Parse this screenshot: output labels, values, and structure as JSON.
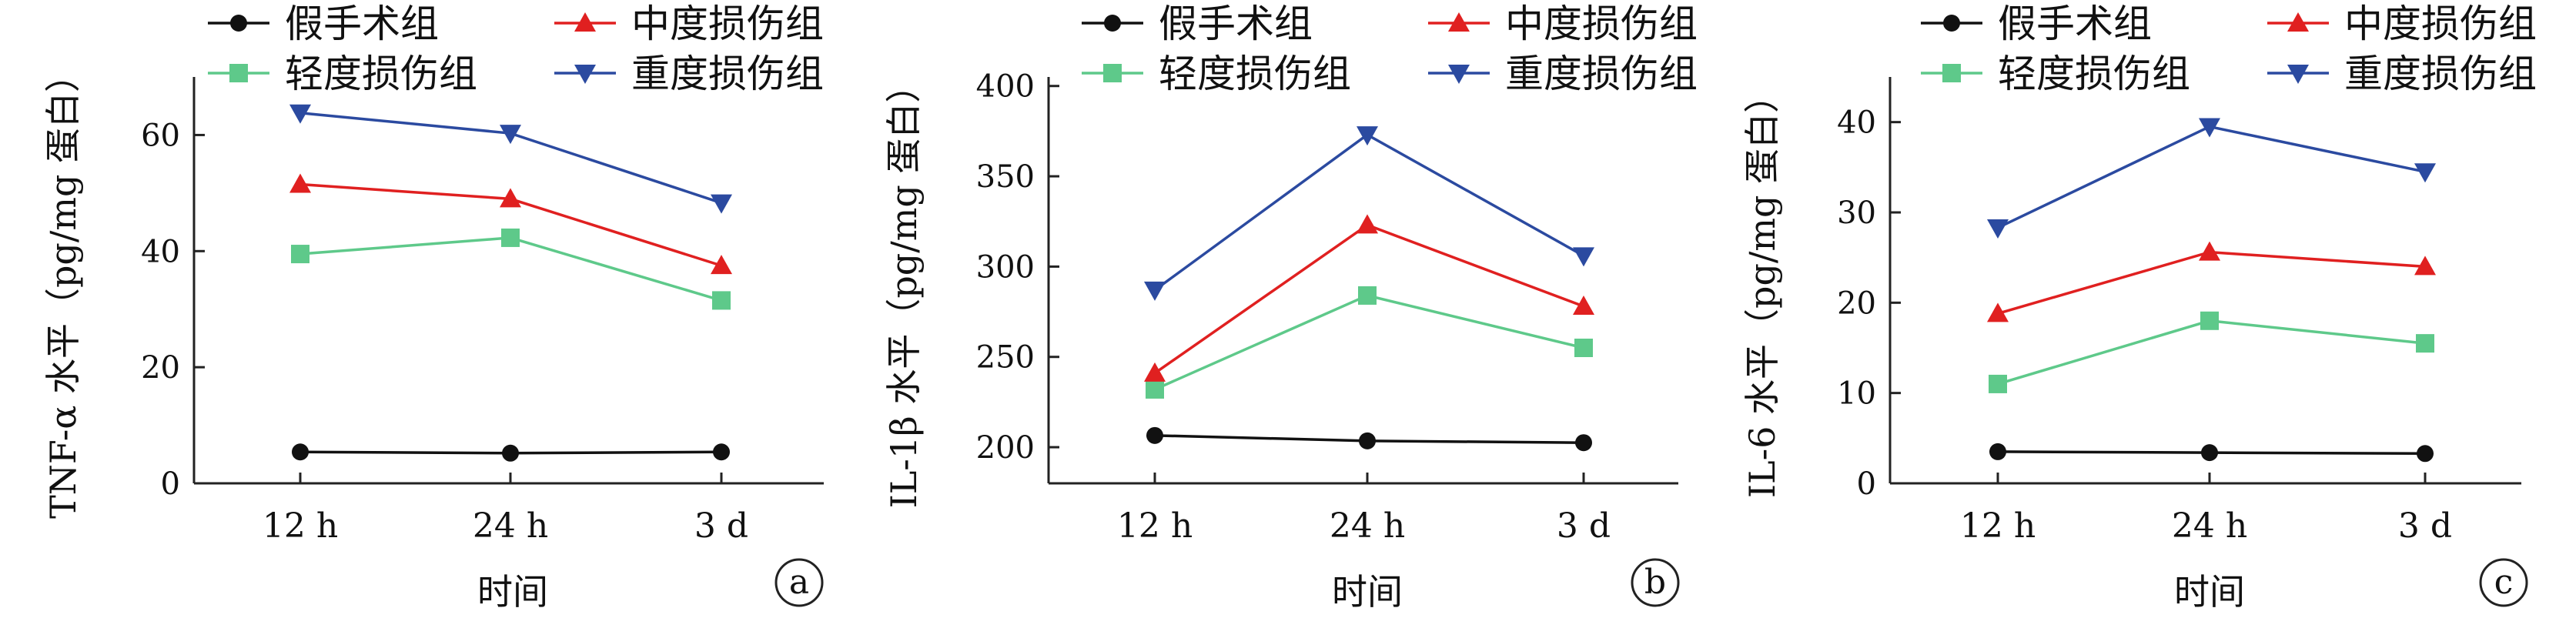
{
  "legend": {
    "sham": "假手术组",
    "moderate": "中度损伤组",
    "mild": "轻度损伤组",
    "severe": "重度损伤组"
  },
  "colors": {
    "sham": "#111111",
    "moderate": "#e02020",
    "mild": "#5ec98a",
    "severe": "#2b4aa0"
  },
  "marker_shapes": {
    "sham": "circle",
    "moderate": "triangle-up",
    "mild": "square",
    "severe": "triangle-down"
  },
  "chart_data": [
    {
      "type": "line",
      "panel": "a",
      "categories": [
        "12 h",
        "24 h",
        "3 d"
      ],
      "xlabel": "时间",
      "ylabel": "TNF-α 水平（pg/mg 蛋白）",
      "ylim": [
        0,
        70
      ],
      "yticks": [
        0,
        20,
        40,
        60
      ],
      "series": [
        {
          "key": "sham",
          "name": "假手术组",
          "values": [
            5.4,
            5.2,
            5.4
          ]
        },
        {
          "key": "mild",
          "name": "轻度损伤组",
          "values": [
            39.5,
            42.3,
            31.5
          ]
        },
        {
          "key": "moderate",
          "name": "中度损伤组",
          "values": [
            51.5,
            49.0,
            37.5
          ]
        },
        {
          "key": "severe",
          "name": "重度损伤组",
          "values": [
            63.8,
            60.3,
            48.3
          ]
        }
      ]
    },
    {
      "type": "line",
      "panel": "b",
      "categories": [
        "12 h",
        "24 h",
        "3 d"
      ],
      "xlabel": "时间",
      "ylabel": "IL-1β 水平（pg/mg 蛋白）",
      "ylim": [
        180,
        405
      ],
      "yticks": [
        200,
        250,
        300,
        350,
        400
      ],
      "series": [
        {
          "key": "sham",
          "name": "假手术组",
          "values": [
            206.5,
            203.5,
            202.5
          ]
        },
        {
          "key": "mild",
          "name": "轻度损伤组",
          "values": [
            232,
            284,
            255
          ]
        },
        {
          "key": "moderate",
          "name": "中度损伤组",
          "values": [
            241,
            323,
            278
          ]
        },
        {
          "key": "severe",
          "name": "重度损伤组",
          "values": [
            287,
            373,
            306
          ]
        }
      ]
    },
    {
      "type": "line",
      "panel": "c",
      "categories": [
        "12 h",
        "24 h",
        "3 d"
      ],
      "xlabel": "时间",
      "ylabel": "IL-6 水平（pg/mg 蛋白）",
      "ylim": [
        0,
        45
      ],
      "yticks": [
        0,
        10,
        20,
        30,
        40
      ],
      "series": [
        {
          "key": "sham",
          "name": "假手术组",
          "values": [
            3.5,
            3.4,
            3.3
          ]
        },
        {
          "key": "mild",
          "name": "轻度损伤组",
          "values": [
            11,
            18,
            15.5
          ]
        },
        {
          "key": "moderate",
          "name": "中度损伤组",
          "values": [
            18.8,
            25.6,
            24
          ]
        },
        {
          "key": "severe",
          "name": "重度损伤组",
          "values": [
            28.3,
            39.5,
            34.5
          ]
        }
      ]
    }
  ]
}
